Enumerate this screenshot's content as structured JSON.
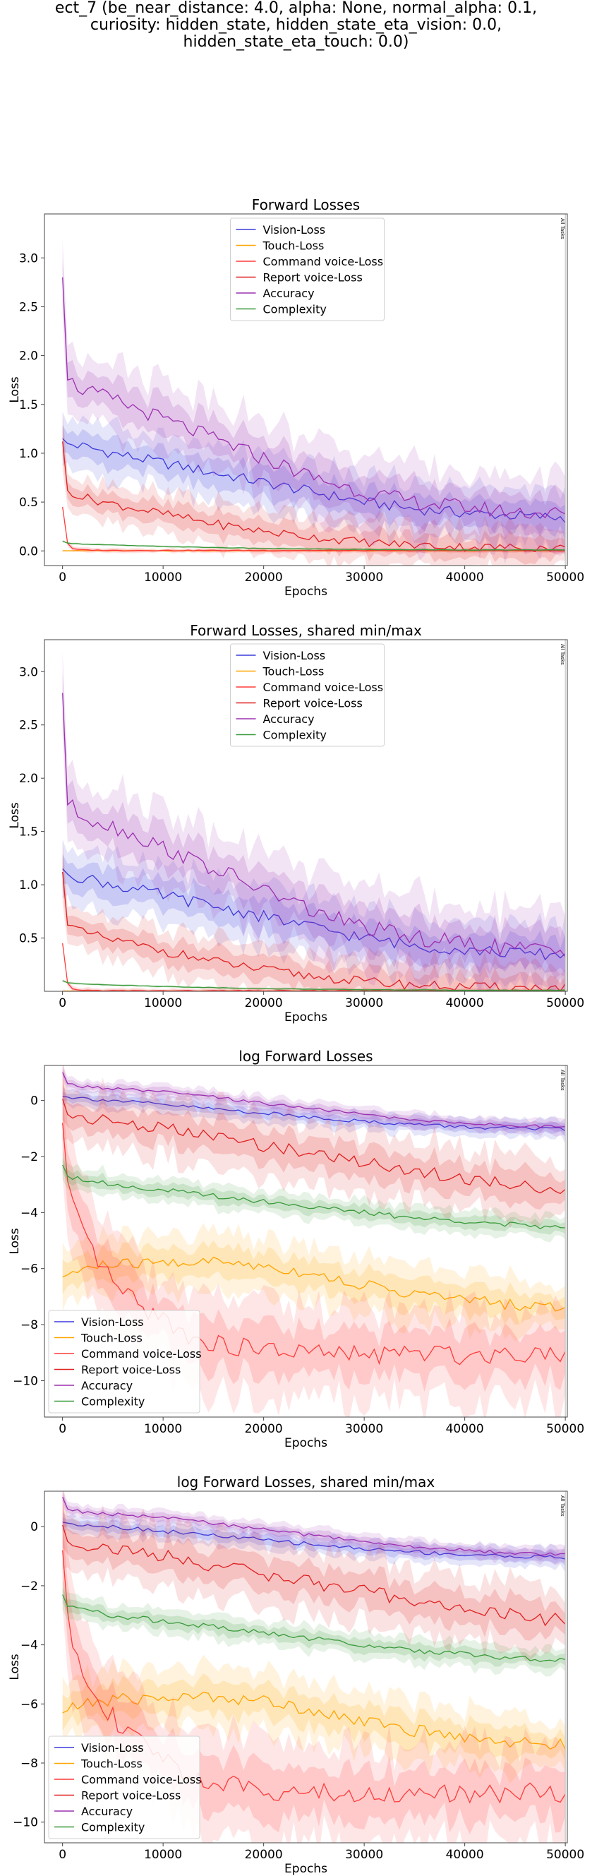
{
  "suptitle_lines": [
    "ect_7 (be_near_distance: 4.0, alpha: None, normal_alpha: 0.1,",
    "curiosity: hidden_state, hidden_state_eta_vision: 0.0,",
    "hidden_state_eta_touch: 0.0)"
  ],
  "colors": {
    "Vision-Loss": "#3b3bdc",
    "Touch-Loss": "#ffa500",
    "Command voice-Loss": "#ff3b3b",
    "Report voice-Loss": "#e02020",
    "Accuracy": "#9b30b0",
    "Complexity": "#3a9a3a"
  },
  "chart_data": [
    {
      "type": "line",
      "title": "Forward Losses",
      "xlabel": "Epochs",
      "ylabel": "Loss",
      "xlim": [
        -1800,
        50200
      ],
      "ylim": [
        -0.15,
        3.45
      ],
      "xticks": [
        0,
        10000,
        20000,
        30000,
        40000,
        50000
      ],
      "yticks": [
        0.0,
        0.5,
        1.0,
        1.5,
        2.0,
        2.5,
        3.0
      ],
      "ytick_labels": [
        "0.0",
        "0.5",
        "1.0",
        "1.5",
        "2.0",
        "2.5",
        "3.0"
      ],
      "legend": "upper center",
      "vline": {
        "x": 50000,
        "label": "All Tasks"
      },
      "series": [
        {
          "name": "Vision-Loss",
          "band": 0.25,
          "x": [
            0,
            500,
            2000,
            5000,
            10000,
            15000,
            20000,
            25000,
            30000,
            35000,
            40000,
            45000,
            50000
          ],
          "values": [
            1.15,
            1.1,
            1.07,
            1.0,
            0.9,
            0.8,
            0.7,
            0.6,
            0.5,
            0.43,
            0.39,
            0.36,
            0.34
          ]
        },
        {
          "name": "Touch-Loss",
          "band": 0.01,
          "x": [
            0,
            50000
          ],
          "values": [
            0.002,
            0.001
          ]
        },
        {
          "name": "Command voice-Loss",
          "band": 0.02,
          "x": [
            0,
            300,
            1000,
            2000,
            5000,
            50000
          ],
          "values": [
            0.45,
            0.1,
            0.02,
            0.01,
            0.005,
            0.003
          ]
        },
        {
          "name": "Report voice-Loss",
          "band": 0.2,
          "x": [
            0,
            500,
            2000,
            5000,
            10000,
            15000,
            20000,
            25000,
            30000,
            35000,
            40000,
            45000,
            50000
          ],
          "values": [
            1.12,
            0.62,
            0.55,
            0.48,
            0.38,
            0.28,
            0.2,
            0.14,
            0.09,
            0.06,
            0.04,
            0.035,
            0.03
          ]
        },
        {
          "name": "Accuracy",
          "band": 0.35,
          "x": [
            0,
            500,
            2000,
            5000,
            10000,
            15000,
            20000,
            25000,
            30000,
            35000,
            40000,
            45000,
            50000
          ],
          "values": [
            2.8,
            1.75,
            1.65,
            1.55,
            1.35,
            1.15,
            0.95,
            0.75,
            0.6,
            0.5,
            0.45,
            0.4,
            0.38
          ]
        },
        {
          "name": "Complexity",
          "band": 0.01,
          "x": [
            0,
            500,
            2000,
            5000,
            10000,
            20000,
            30000,
            40000,
            50000
          ],
          "values": [
            0.1,
            0.08,
            0.07,
            0.06,
            0.045,
            0.025,
            0.015,
            0.01,
            0.01
          ]
        }
      ]
    },
    {
      "type": "line",
      "title": "Forward Losses, shared min/max",
      "xlabel": "Epochs",
      "ylabel": "Loss",
      "xlim": [
        -1800,
        50200
      ],
      "ylim": [
        0.0,
        3.3
      ],
      "xticks": [
        0,
        10000,
        20000,
        30000,
        40000,
        50000
      ],
      "yticks": [
        0.5,
        1.0,
        1.5,
        2.0,
        2.5,
        3.0
      ],
      "ytick_labels": [
        "0.5",
        "1.0",
        "1.5",
        "2.0",
        "2.5",
        "3.0"
      ],
      "legend": "upper center",
      "vline": {
        "x": 50000,
        "label": "All Tasks"
      },
      "series": [
        {
          "name": "Vision-Loss",
          "band": 0.25,
          "x": [
            0,
            500,
            2000,
            5000,
            10000,
            15000,
            20000,
            25000,
            30000,
            35000,
            40000,
            45000,
            50000
          ],
          "values": [
            1.15,
            1.1,
            1.07,
            1.0,
            0.9,
            0.8,
            0.7,
            0.6,
            0.5,
            0.43,
            0.39,
            0.36,
            0.34
          ]
        },
        {
          "name": "Touch-Loss",
          "band": 0.01,
          "x": [
            0,
            50000
          ],
          "values": [
            0.002,
            0.001
          ]
        },
        {
          "name": "Command voice-Loss",
          "band": 0.02,
          "x": [
            0,
            300,
            1000,
            2000,
            5000,
            50000
          ],
          "values": [
            0.45,
            0.1,
            0.02,
            0.01,
            0.005,
            0.003
          ]
        },
        {
          "name": "Report voice-Loss",
          "band": 0.2,
          "x": [
            0,
            500,
            2000,
            5000,
            10000,
            15000,
            20000,
            25000,
            30000,
            35000,
            40000,
            45000,
            50000
          ],
          "values": [
            1.12,
            0.62,
            0.55,
            0.48,
            0.38,
            0.28,
            0.2,
            0.14,
            0.09,
            0.06,
            0.04,
            0.035,
            0.03
          ]
        },
        {
          "name": "Accuracy",
          "band": 0.35,
          "x": [
            0,
            500,
            2000,
            5000,
            10000,
            15000,
            20000,
            25000,
            30000,
            35000,
            40000,
            45000,
            50000
          ],
          "values": [
            2.8,
            1.75,
            1.65,
            1.55,
            1.35,
            1.15,
            0.95,
            0.75,
            0.6,
            0.5,
            0.45,
            0.4,
            0.38
          ]
        },
        {
          "name": "Complexity",
          "band": 0.01,
          "x": [
            0,
            500,
            2000,
            5000,
            10000,
            20000,
            30000,
            40000,
            50000
          ],
          "values": [
            0.1,
            0.08,
            0.07,
            0.06,
            0.045,
            0.025,
            0.015,
            0.01,
            0.01
          ]
        }
      ]
    },
    {
      "type": "line",
      "title": "log Forward Losses",
      "xlabel": "Epochs",
      "ylabel": "Loss",
      "xlim": [
        -1800,
        50200
      ],
      "ylim": [
        -11.3,
        1.25
      ],
      "xticks": [
        0,
        10000,
        20000,
        30000,
        40000,
        50000
      ],
      "yticks": [
        0,
        -2,
        -4,
        -6,
        -8,
        -10
      ],
      "ytick_labels": [
        "0",
        "−2",
        "−4",
        "−6",
        "−8",
        "−10"
      ],
      "legend": "lower left",
      "vline": {
        "x": 50000,
        "label": "All Tasks"
      },
      "series": [
        {
          "name": "Vision-Loss",
          "band": 0.3,
          "x": [
            0,
            500,
            2000,
            5000,
            10000,
            15000,
            20000,
            25000,
            30000,
            35000,
            40000,
            45000,
            50000
          ],
          "values": [
            0.15,
            0.12,
            0.08,
            0.0,
            -0.15,
            -0.3,
            -0.45,
            -0.6,
            -0.75,
            -0.85,
            -0.95,
            -1.0,
            -1.05
          ]
        },
        {
          "name": "Touch-Loss",
          "band": 0.9,
          "x": [
            0,
            2000,
            5000,
            10000,
            15000,
            20000,
            25000,
            30000,
            35000,
            40000,
            45000,
            50000
          ],
          "values": [
            -6.3,
            -6.0,
            -5.85,
            -5.8,
            -5.75,
            -5.9,
            -6.2,
            -6.6,
            -6.9,
            -7.1,
            -7.3,
            -7.4
          ]
        },
        {
          "name": "Command voice-Loss",
          "band": 1.5,
          "x": [
            0,
            300,
            1000,
            2000,
            4000,
            6000,
            8000,
            10000,
            12000,
            15000,
            20000,
            25000,
            30000,
            35000,
            40000,
            45000,
            50000
          ],
          "values": [
            -0.8,
            -2.5,
            -3.8,
            -4.8,
            -6.0,
            -6.9,
            -7.4,
            -7.8,
            -8.3,
            -8.7,
            -8.9,
            -9.0,
            -9.1,
            -9.0,
            -9.1,
            -9.0,
            -9.0
          ]
        },
        {
          "name": "Report voice-Loss",
          "band": 1.0,
          "x": [
            0,
            500,
            2000,
            5000,
            10000,
            15000,
            20000,
            25000,
            30000,
            35000,
            40000,
            45000,
            50000
          ],
          "values": [
            0.05,
            -0.5,
            -0.6,
            -0.75,
            -1.0,
            -1.3,
            -1.6,
            -1.9,
            -2.2,
            -2.5,
            -2.8,
            -3.0,
            -3.2
          ]
        },
        {
          "name": "Accuracy",
          "band": 0.25,
          "x": [
            0,
            500,
            2000,
            5000,
            10000,
            15000,
            20000,
            25000,
            30000,
            35000,
            40000,
            45000,
            50000
          ],
          "values": [
            1.0,
            0.6,
            0.5,
            0.42,
            0.3,
            0.12,
            -0.1,
            -0.3,
            -0.5,
            -0.7,
            -0.8,
            -0.9,
            -0.95
          ]
        },
        {
          "name": "Complexity",
          "band": 0.4,
          "x": [
            0,
            500,
            2000,
            5000,
            10000,
            15000,
            20000,
            25000,
            30000,
            35000,
            40000,
            45000,
            50000
          ],
          "values": [
            -2.3,
            -2.7,
            -2.8,
            -3.0,
            -3.2,
            -3.4,
            -3.6,
            -3.8,
            -4.0,
            -4.2,
            -4.3,
            -4.45,
            -4.55
          ]
        }
      ]
    },
    {
      "type": "line",
      "title": "log Forward Losses, shared min/max",
      "xlabel": "Epochs",
      "ylabel": "Loss",
      "xlim": [
        -1800,
        50200
      ],
      "ylim": [
        -10.7,
        1.2
      ],
      "xticks": [
        0,
        10000,
        20000,
        30000,
        40000,
        50000
      ],
      "yticks": [
        0,
        -2,
        -4,
        -6,
        -8,
        -10
      ],
      "ytick_labels": [
        "0",
        "−2",
        "−4",
        "−6",
        "−8",
        "−10"
      ],
      "legend": "lower left",
      "vline": {
        "x": 50000,
        "label": "All Tasks"
      },
      "series": [
        {
          "name": "Vision-Loss",
          "band": 0.3,
          "x": [
            0,
            500,
            2000,
            5000,
            10000,
            15000,
            20000,
            25000,
            30000,
            35000,
            40000,
            45000,
            50000
          ],
          "values": [
            0.15,
            0.12,
            0.08,
            0.0,
            -0.15,
            -0.3,
            -0.45,
            -0.6,
            -0.75,
            -0.85,
            -0.95,
            -1.0,
            -1.05
          ]
        },
        {
          "name": "Touch-Loss",
          "band": 0.9,
          "x": [
            0,
            2000,
            5000,
            10000,
            15000,
            20000,
            25000,
            30000,
            35000,
            40000,
            45000,
            50000
          ],
          "values": [
            -6.3,
            -6.0,
            -5.85,
            -5.8,
            -5.75,
            -5.9,
            -6.2,
            -6.6,
            -6.9,
            -7.1,
            -7.3,
            -7.4
          ]
        },
        {
          "name": "Command voice-Loss",
          "band": 1.5,
          "x": [
            0,
            300,
            1000,
            2000,
            4000,
            6000,
            8000,
            10000,
            12000,
            15000,
            20000,
            25000,
            30000,
            35000,
            40000,
            45000,
            50000
          ],
          "values": [
            -0.8,
            -2.5,
            -3.8,
            -4.8,
            -6.0,
            -6.9,
            -7.4,
            -7.8,
            -8.3,
            -8.7,
            -8.9,
            -9.0,
            -9.1,
            -9.0,
            -9.1,
            -9.0,
            -9.0
          ]
        },
        {
          "name": "Report voice-Loss",
          "band": 1.0,
          "x": [
            0,
            500,
            2000,
            5000,
            10000,
            15000,
            20000,
            25000,
            30000,
            35000,
            40000,
            45000,
            50000
          ],
          "values": [
            0.05,
            -0.5,
            -0.6,
            -0.75,
            -1.0,
            -1.3,
            -1.6,
            -1.9,
            -2.2,
            -2.5,
            -2.8,
            -3.0,
            -3.2
          ]
        },
        {
          "name": "Accuracy",
          "band": 0.25,
          "x": [
            0,
            500,
            2000,
            5000,
            10000,
            15000,
            20000,
            25000,
            30000,
            35000,
            40000,
            45000,
            50000
          ],
          "values": [
            1.0,
            0.6,
            0.5,
            0.42,
            0.3,
            0.12,
            -0.1,
            -0.3,
            -0.5,
            -0.7,
            -0.8,
            -0.9,
            -0.95
          ]
        },
        {
          "name": "Complexity",
          "band": 0.4,
          "x": [
            0,
            500,
            2000,
            5000,
            10000,
            15000,
            20000,
            25000,
            30000,
            35000,
            40000,
            45000,
            50000
          ],
          "values": [
            -2.3,
            -2.7,
            -2.8,
            -3.0,
            -3.2,
            -3.4,
            -3.6,
            -3.8,
            -4.0,
            -4.2,
            -4.3,
            -4.45,
            -4.55
          ]
        }
      ]
    }
  ]
}
